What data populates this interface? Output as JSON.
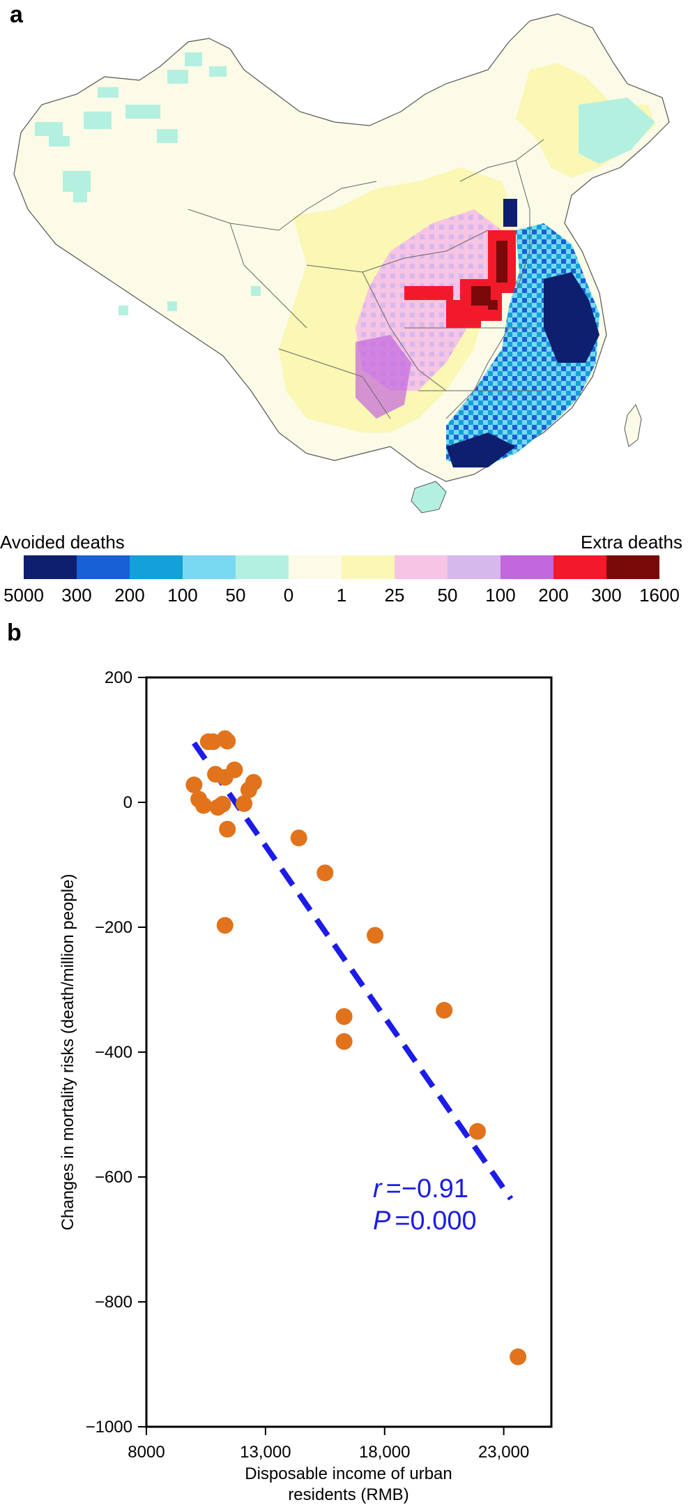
{
  "panels": {
    "a": "a",
    "b": "b"
  },
  "map": {
    "legend": {
      "left_label": "Avoided deaths",
      "right_label": "Extra deaths",
      "colors": [
        "#0d1f6e",
        "#1760d6",
        "#14a0d8",
        "#79d8f2",
        "#b4f0e0",
        "#fbfbe8",
        "#fbf7b4",
        "#f6c4e4",
        "#d7b8ec",
        "#c367de",
        "#f21a2a",
        "#7a0a0a"
      ],
      "ticks": [
        "5000",
        "300",
        "200",
        "100",
        "50",
        "0",
        "1",
        "25",
        "50",
        "100",
        "200",
        "300",
        "1600"
      ]
    }
  },
  "chart_data": {
    "type": "scatter",
    "title": "",
    "xlabel": "Disposable income of urban residents (RMB)",
    "xlabel_lines": [
      "Disposable income of urban",
      "residents (RMB)"
    ],
    "ylabel": "Changes in mortality risks (death/million people)",
    "xlim": [
      8000,
      25000
    ],
    "ylim": [
      -1000,
      200
    ],
    "xticks": [
      8000,
      13000,
      18000,
      23000
    ],
    "xtick_labels": [
      "8000",
      "13,000",
      "18,000",
      "23,000"
    ],
    "yticks": [
      200,
      0,
      -200,
      -400,
      -600,
      -800,
      -1000
    ],
    "ytick_labels": [
      "200",
      "0",
      "−200",
      "−400",
      "−600",
      "−800",
      "−1000"
    ],
    "points": [
      {
        "x": 10600,
        "y": 97
      },
      {
        "x": 10800,
        "y": 97
      },
      {
        "x": 11300,
        "y": 102
      },
      {
        "x": 11400,
        "y": 98
      },
      {
        "x": 10900,
        "y": 45
      },
      {
        "x": 11300,
        "y": 40
      },
      {
        "x": 11700,
        "y": 52
      },
      {
        "x": 10000,
        "y": 28
      },
      {
        "x": 12500,
        "y": 32
      },
      {
        "x": 12300,
        "y": 20
      },
      {
        "x": 10200,
        "y": 5
      },
      {
        "x": 10400,
        "y": -5
      },
      {
        "x": 11000,
        "y": -8
      },
      {
        "x": 11200,
        "y": -3
      },
      {
        "x": 12100,
        "y": -2
      },
      {
        "x": 11400,
        "y": -43
      },
      {
        "x": 14400,
        "y": -57
      },
      {
        "x": 15500,
        "y": -113
      },
      {
        "x": 11300,
        "y": -197
      },
      {
        "x": 17600,
        "y": -213
      },
      {
        "x": 16300,
        "y": -343
      },
      {
        "x": 16300,
        "y": -383
      },
      {
        "x": 20500,
        "y": -333
      },
      {
        "x": 21900,
        "y": -527
      },
      {
        "x": 23600,
        "y": -888
      }
    ],
    "point_color": "#e0731c",
    "fit_line": {
      "x": [
        10000,
        23300
      ],
      "y": [
        95,
        -635
      ],
      "color": "#1c1ce6",
      "style": "dashed"
    },
    "annotations": [
      {
        "symbol": "r",
        "text": "=−0.91"
      },
      {
        "symbol": "P",
        "text": "=0.000"
      }
    ]
  }
}
